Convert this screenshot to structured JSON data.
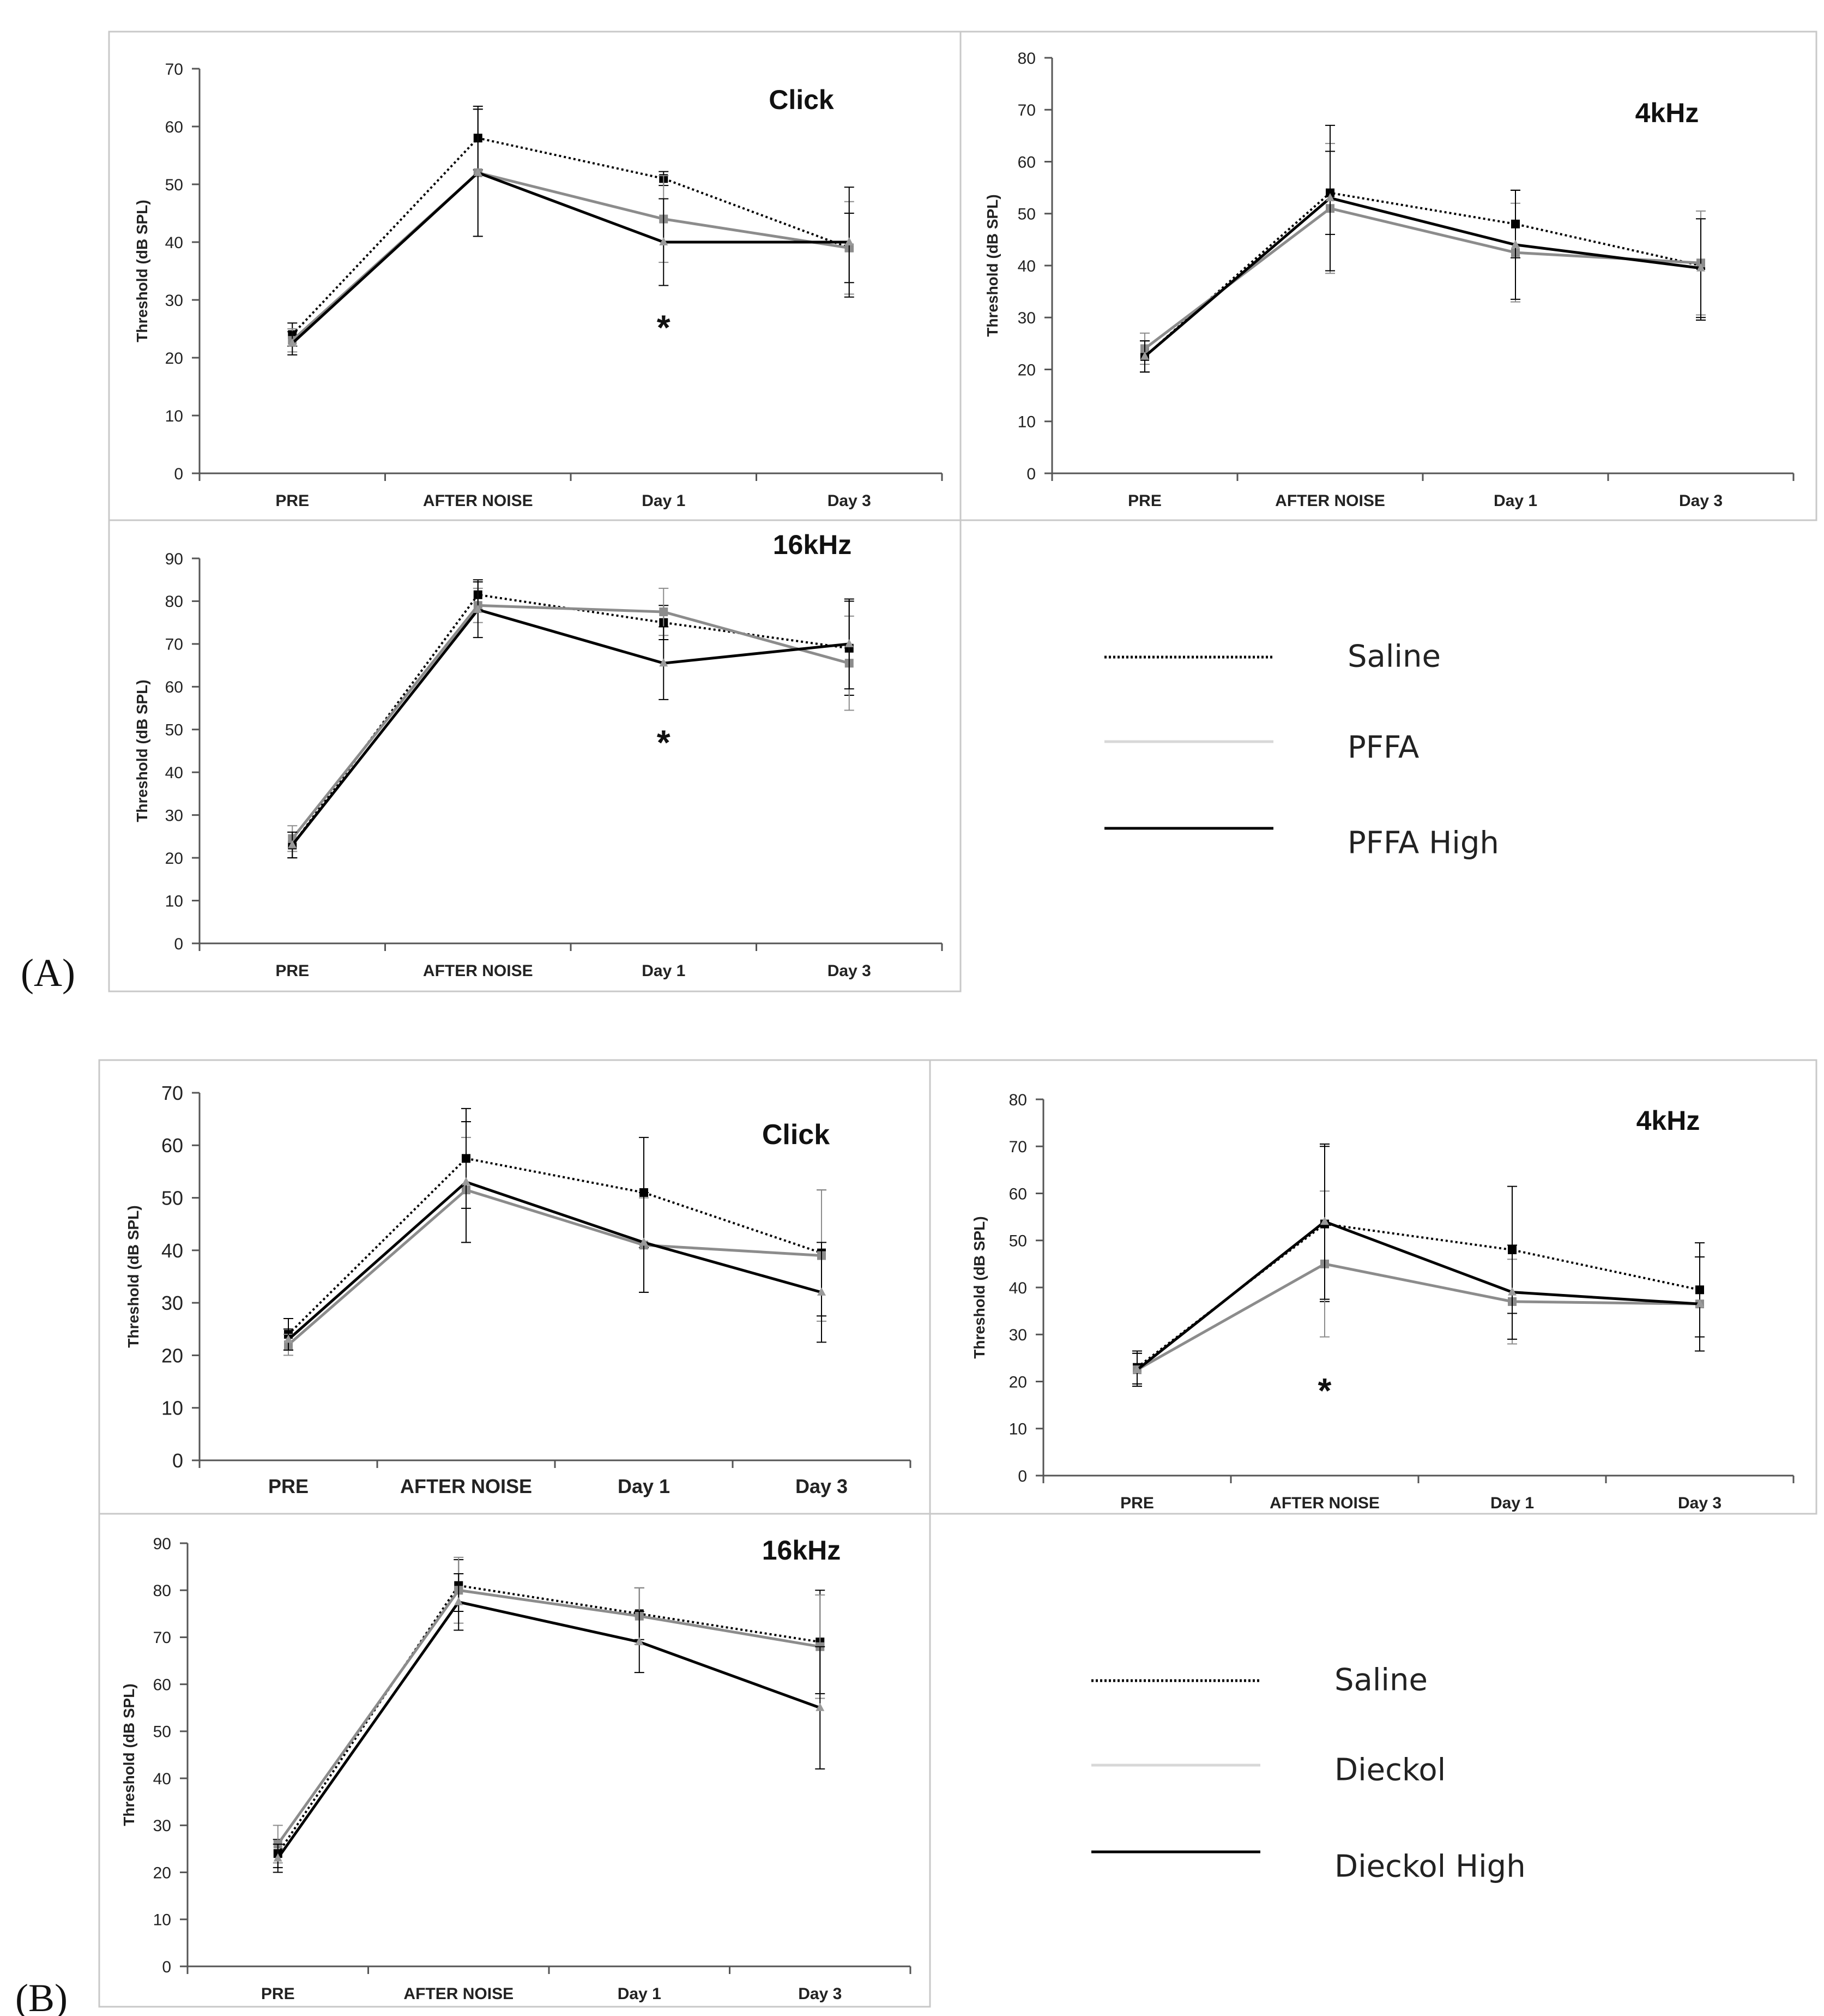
{
  "figure": {
    "panel_labels": [
      "(A)",
      "(B)"
    ]
  },
  "styles": {
    "Saline": {
      "color": "#000000",
      "dash": "dotted",
      "marker": "square"
    },
    "PFFA": {
      "color": "#8c8c8c",
      "dash": "solid",
      "marker": "square"
    },
    "PFFA High": {
      "color": "#000000",
      "dash": "solid",
      "marker": "triangle"
    },
    "Dieckol": {
      "color": "#8c8c8c",
      "dash": "solid",
      "marker": "square"
    },
    "Dieckol High": {
      "color": "#000000",
      "dash": "solid",
      "marker": "triangle"
    }
  },
  "legends": [
    {
      "group": "A",
      "entries": [
        "Saline",
        "PFFA",
        "PFFA High"
      ],
      "line_colors": [
        "#000000",
        "#d8d8d8",
        "#000000"
      ]
    },
    {
      "group": "B",
      "entries": [
        "Saline",
        "Dieckol",
        "Dieckol High"
      ],
      "line_colors": [
        "#000000",
        "#d8d8d8",
        "#000000"
      ]
    }
  ],
  "chart_data": [
    {
      "group": "A",
      "type": "line",
      "title": "Click",
      "ylabel": "Threshold (dB SPL)",
      "categories": [
        "PRE",
        "AFTER NOISE",
        "Day 1",
        "Day 3"
      ],
      "ylim": [
        0,
        70
      ],
      "yticks": [
        0,
        10,
        20,
        30,
        40,
        50,
        60,
        70
      ],
      "series": [
        {
          "name": "Saline",
          "values": [
            24,
            58,
            51,
            39
          ],
          "err": [
            2,
            5.5,
            1.2,
            6
          ]
        },
        {
          "name": "PFFA",
          "values": [
            23,
            52,
            44,
            39
          ],
          "err": [
            2,
            11,
            7.5,
            8
          ]
        },
        {
          "name": "PFFA High",
          "values": [
            22.5,
            52,
            40,
            40
          ],
          "err": [
            2,
            11,
            7.5,
            9.5
          ]
        }
      ],
      "annotations": [
        {
          "text": "*",
          "category": "Day 1",
          "y": 26
        }
      ]
    },
    {
      "group": "A",
      "type": "line",
      "title": "4kHz",
      "ylabel": "Threshold (dB SPL)",
      "categories": [
        "PRE",
        "AFTER NOISE",
        "Day 1",
        "Day 3"
      ],
      "ylim": [
        0,
        80
      ],
      "yticks": [
        0,
        10,
        20,
        30,
        40,
        50,
        60,
        70,
        80
      ],
      "series": [
        {
          "name": "Saline",
          "values": [
            22.5,
            54,
            48,
            40
          ],
          "err": [
            3,
            8,
            6.5,
            10.5
          ]
        },
        {
          "name": "PFFA",
          "values": [
            24,
            51,
            42.5,
            40.5
          ],
          "err": [
            3,
            12.5,
            9.5,
            10
          ]
        },
        {
          "name": "PFFA High",
          "values": [
            22.5,
            53,
            44,
            39.5
          ],
          "err": [
            3,
            14,
            10.5,
            9.5
          ]
        }
      ],
      "annotations": []
    },
    {
      "group": "A",
      "type": "line",
      "title": "16kHz",
      "ylabel": "Threshold (dB SPL)",
      "categories": [
        "PRE",
        "AFTER NOISE",
        "Day 1",
        "Day 3"
      ],
      "ylim": [
        0,
        90
      ],
      "yticks": [
        0,
        10,
        20,
        30,
        40,
        50,
        60,
        70,
        80,
        90
      ],
      "series": [
        {
          "name": "Saline",
          "values": [
            23,
            81.5,
            75,
            69
          ],
          "err": [
            3,
            3.5,
            4,
            11
          ]
        },
        {
          "name": "PFFA",
          "values": [
            24.5,
            79,
            77.5,
            65.5
          ],
          "err": [
            3,
            4,
            5.5,
            11
          ]
        },
        {
          "name": "PFFA High",
          "values": [
            23,
            78,
            65.5,
            70
          ],
          "err": [
            3,
            6.5,
            8.5,
            10.5
          ]
        }
      ],
      "annotations": [
        {
          "text": "*",
          "category": "Day 1",
          "y": 48
        }
      ]
    },
    {
      "group": "B",
      "type": "line",
      "title": "Click",
      "ylabel": "Threshold (dB SPL)",
      "categories": [
        "PRE",
        "AFTER NOISE",
        "Day 1",
        "Day 3"
      ],
      "ylim": [
        0,
        70
      ],
      "yticks": [
        0,
        10,
        20,
        30,
        40,
        50,
        60,
        70
      ],
      "series": [
        {
          "name": "Saline",
          "values": [
            24,
            57.5,
            51,
            39.5
          ],
          "err": [
            3,
            9.5,
            10.5,
            12
          ]
        },
        {
          "name": "Dieckol",
          "values": [
            22,
            51.5,
            41,
            39
          ],
          "err": [
            2,
            10,
            9,
            12.5
          ]
        },
        {
          "name": "Dieckol High",
          "values": [
            23,
            53,
            41.5,
            32
          ],
          "err": [
            2,
            11.5,
            9.5,
            9.5
          ]
        }
      ],
      "annotations": []
    },
    {
      "group": "B",
      "type": "line",
      "title": "4kHz",
      "ylabel": "Threshold (dB SPL)",
      "categories": [
        "PRE",
        "AFTER NOISE",
        "Day 1",
        "Day 3"
      ],
      "ylim": [
        0,
        80
      ],
      "yticks": [
        0,
        10,
        20,
        30,
        40,
        50,
        60,
        70,
        80
      ],
      "series": [
        {
          "name": "Saline",
          "values": [
            23,
            53.5,
            48,
            39.5
          ],
          "err": [
            3.5,
            16.5,
            13.5,
            10
          ]
        },
        {
          "name": "Dieckol",
          "values": [
            22.5,
            45,
            37,
            36.5
          ],
          "err": [
            3.5,
            15.5,
            9,
            10
          ]
        },
        {
          "name": "Dieckol High",
          "values": [
            22.5,
            54,
            39,
            36.5
          ],
          "err": [
            3.5,
            16.5,
            10,
            10
          ]
        }
      ],
      "annotations": [
        {
          "text": "*",
          "category": "AFTER NOISE",
          "y": 19
        }
      ]
    },
    {
      "group": "B",
      "type": "line",
      "title": "16kHz",
      "ylabel": "Threshold (dB SPL)",
      "categories": [
        "PRE",
        "AFTER NOISE",
        "Day 1",
        "Day 3"
      ],
      "ylim": [
        0,
        90
      ],
      "yticks": [
        0,
        10,
        20,
        30,
        40,
        50,
        60,
        70,
        80,
        90
      ],
      "series": [
        {
          "name": "Saline",
          "values": [
            24,
            81,
            75,
            69
          ],
          "err": [
            3,
            5.5,
            5.5,
            11
          ]
        },
        {
          "name": "Dieckol",
          "values": [
            26,
            80,
            74.5,
            68
          ],
          "err": [
            4,
            7,
            6,
            11
          ]
        },
        {
          "name": "Dieckol High",
          "values": [
            23,
            77.5,
            69,
            55
          ],
          "err": [
            3,
            6,
            6.5,
            13
          ]
        }
      ],
      "annotations": []
    }
  ]
}
